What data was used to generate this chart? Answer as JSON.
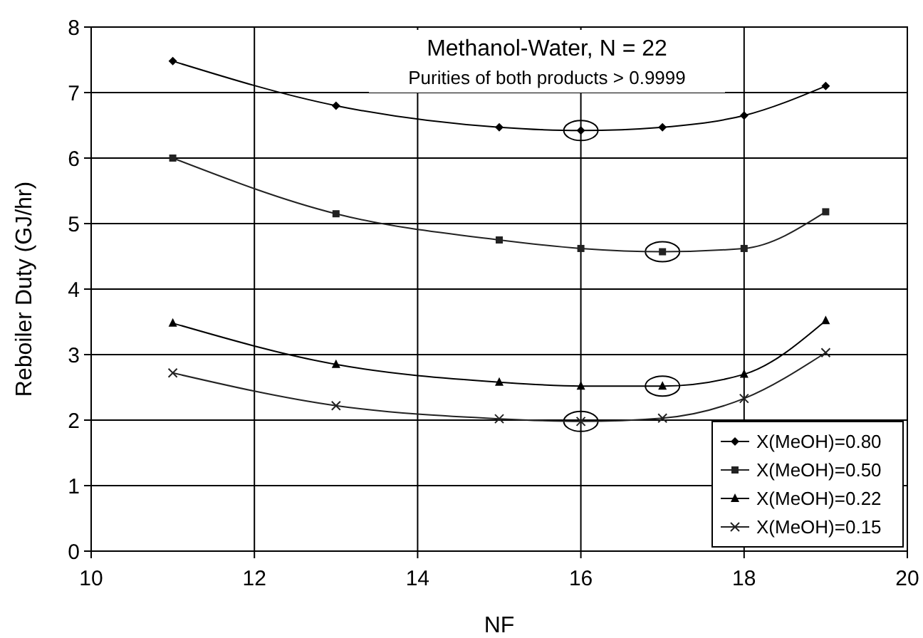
{
  "chart_data": {
    "type": "line",
    "title": "Methanol-Water, N = 22",
    "subtitle": "Purities of both products > 0.9999",
    "xlabel": "NF",
    "ylabel": "Reboiler Duty (GJ/hr)",
    "xlim": [
      10,
      20
    ],
    "xticks": [
      10,
      12,
      14,
      16,
      18,
      20
    ],
    "ylim": [
      0,
      8
    ],
    "yticks": [
      0,
      1,
      2,
      3,
      4,
      5,
      6,
      7,
      8
    ],
    "grid": true,
    "legend": "bottom right",
    "x": [
      11,
      13,
      15,
      16,
      17,
      18,
      19
    ],
    "series": [
      {
        "name": "X(MeOH)=0.80",
        "color": "#000000",
        "marker": "diamond",
        "values": [
          7.48,
          6.8,
          6.47,
          6.42,
          6.47,
          6.65,
          7.1
        ]
      },
      {
        "name": "X(MeOH)=0.50",
        "color": "#222222",
        "marker": "square",
        "values": [
          6.0,
          5.15,
          4.75,
          4.62,
          4.57,
          4.62,
          5.18
        ]
      },
      {
        "name": "X(MeOH)=0.22",
        "color": "#000000",
        "marker": "triangle",
        "values": [
          3.48,
          2.85,
          2.58,
          2.52,
          2.52,
          2.7,
          3.52
        ]
      },
      {
        "name": "X(MeOH)=0.15",
        "color": "#222222",
        "marker": "cross",
        "values": [
          2.72,
          2.22,
          2.02,
          1.98,
          2.03,
          2.33,
          3.03
        ]
      },
      {
        "type": "scatter",
        "color": "#000000",
        "marker": "circle",
        "values": [
          null,
          null,
          null,
          6.42,
          null,
          null,
          null
        ]
      },
      {
        "type": "scatter",
        "color": "#000000",
        "marker": "circle",
        "values": [
          null,
          null,
          null,
          null,
          4.57,
          null,
          null
        ]
      },
      {
        "type": "scatter",
        "color": "#000000",
        "marker": "circle",
        "values": [
          null,
          null,
          null,
          null,
          2.52,
          null,
          null
        ]
      },
      {
        "type": "scatter",
        "color": "#000000",
        "marker": "circle",
        "values": [
          null,
          null,
          null,
          1.98,
          null,
          null,
          null
        ]
      }
    ]
  }
}
